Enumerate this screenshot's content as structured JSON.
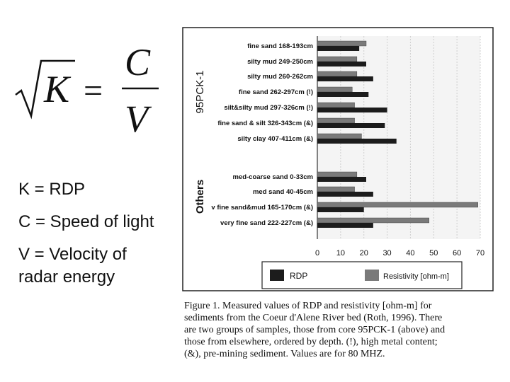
{
  "formula": {
    "lhs_var": "K",
    "equals": "=",
    "numerator": "C",
    "denominator": "V"
  },
  "definitions": [
    "K = RDP",
    "C = Speed of light",
    "V = Velocity of radar energy"
  ],
  "chart_data": {
    "type": "bar",
    "orientation": "horizontal",
    "groups": [
      {
        "name": "95PCK-1",
        "categories": [
          "fine sand 168-193cm",
          "silty mud 249-250cm",
          "silty mud 260-262cm",
          "fine sand 262-297cm (!)",
          "silt&silty mud 297-326cm (!)",
          "fine sand & silt 326-343cm (&)",
          "silty clay 407-411cm (&)"
        ]
      },
      {
        "name": "Others",
        "categories": [
          "med-coarse sand 0-33cm",
          "med sand 40-45cm",
          "v fine sand&mud 165-170cm (&)",
          "very fine sand 222-227cm (&)"
        ]
      }
    ],
    "categories": [
      "fine sand 168-193cm",
      "silty mud 249-250cm",
      "silty mud 260-262cm",
      "fine sand 262-297cm (!)",
      "silt&silty mud 297-326cm (!)",
      "fine sand & silt 326-343cm (&)",
      "silty clay 407-411cm (&)",
      "med-coarse sand 0-33cm",
      "med sand 40-45cm",
      "v fine sand&mud 165-170cm (&)",
      "very fine sand 222-227cm (&)"
    ],
    "series": [
      {
        "name": "RDP",
        "values": [
          18,
          21,
          24,
          22,
          30,
          29,
          34,
          21,
          24,
          20,
          24
        ],
        "color": "#1c1c1c"
      },
      {
        "name": "Resistivity [ohm-m]",
        "values": [
          21,
          17,
          17,
          15,
          16,
          16,
          19,
          17,
          16,
          69,
          48
        ],
        "color": "#7a7a7a"
      }
    ],
    "xlim": [
      0,
      70
    ],
    "xticks": [
      "0",
      "10",
      "20",
      "30",
      "40",
      "50",
      "60",
      "70"
    ],
    "legend": [
      "RDP",
      "Resistivity [ohm-m]"
    ],
    "legend_position": "bottom"
  },
  "caption": {
    "lines": [
      "Figure 1.  Measured values of RDP and resistivity [ohm-m] for",
      "sediments from the Coeur d'Alene River bed (Roth, 1996).  There",
      "are two groups of samples, those from core 95PCK-1 (above) and",
      "those from elsewhere, ordered by depth. (!), high metal content;",
      "(&), pre-mining sediment.  Values are for 80 MHZ."
    ]
  }
}
